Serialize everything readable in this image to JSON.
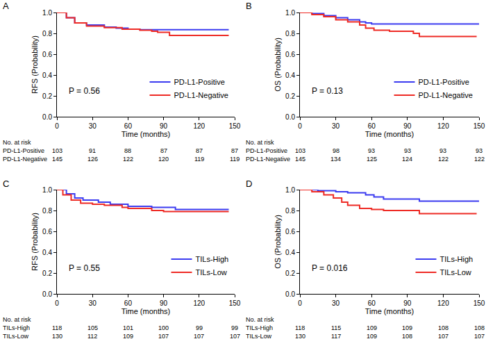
{
  "chart_data": [
    {
      "panel_label": "A",
      "type": "line",
      "line_style": "step",
      "x_label": "Time (months)",
      "y_label": "RFS (Probability)",
      "xlim": [
        0,
        150
      ],
      "xticks": [
        0,
        30,
        60,
        90,
        120,
        150
      ],
      "ylim": [
        0,
        1
      ],
      "yticks": [
        {
          "value": 0,
          "label": "0.0"
        },
        {
          "value": 0.2,
          "label": "0.2"
        },
        {
          "value": 0.4,
          "label": "0.4"
        },
        {
          "value": 0.6,
          "label": "0.6"
        },
        {
          "value": 0.8,
          "label": "0.8"
        },
        {
          "value": 1,
          "label": "1.0"
        }
      ],
      "legend": "lower right",
      "annotation": "P = 0.56",
      "series": [
        {
          "name": "PD-L1-Positive",
          "color": "#3b3bf0",
          "x": [
            0,
            8,
            15,
            25,
            40,
            50,
            60,
            70,
            145
          ],
          "values": [
            1.0,
            0.95,
            0.9,
            0.88,
            0.86,
            0.85,
            0.84,
            0.835,
            0.835
          ]
        },
        {
          "name": "PD-L1-Negative",
          "color": "#ee2a24",
          "x": [
            0,
            8,
            15,
            25,
            40,
            55,
            70,
            80,
            85,
            95,
            145
          ],
          "values": [
            1.0,
            0.95,
            0.9,
            0.87,
            0.855,
            0.84,
            0.83,
            0.82,
            0.81,
            0.78,
            0.78
          ]
        }
      ],
      "risk_table": {
        "title": "No. at risk",
        "times": [
          0,
          30,
          60,
          90,
          120,
          150
        ],
        "rows": [
          {
            "name": "PD-L1-Positive",
            "values": [
              103,
              91,
              88,
              87,
              87,
              87
            ]
          },
          {
            "name": "PD-L1-Negative",
            "values": [
              145,
              126,
              122,
              120,
              119,
              119
            ]
          }
        ]
      }
    },
    {
      "panel_label": "B",
      "type": "line",
      "line_style": "step",
      "x_label": "Time (months)",
      "y_label": "OS (Probability)",
      "xlim": [
        0,
        150
      ],
      "xticks": [
        0,
        30,
        60,
        90,
        120,
        150
      ],
      "ylim": [
        0,
        1
      ],
      "yticks": [
        {
          "value": 0,
          "label": "0.0"
        },
        {
          "value": 0.2,
          "label": "0.2"
        },
        {
          "value": 0.4,
          "label": "0.4"
        },
        {
          "value": 0.6,
          "label": "0.6"
        },
        {
          "value": 0.8,
          "label": "0.8"
        },
        {
          "value": 1,
          "label": "1.0"
        }
      ],
      "legend": "lower right",
      "annotation": "P = 0.13",
      "series": [
        {
          "name": "PD-L1-Positive",
          "color": "#3b3bf0",
          "x": [
            0,
            10,
            20,
            30,
            40,
            50,
            55,
            60,
            150
          ],
          "values": [
            1.0,
            0.99,
            0.97,
            0.95,
            0.93,
            0.91,
            0.9,
            0.89,
            0.89
          ]
        },
        {
          "name": "PD-L1-Negative",
          "color": "#ee2a24",
          "x": [
            0,
            10,
            20,
            30,
            40,
            50,
            55,
            62,
            75,
            95,
            100,
            148
          ],
          "values": [
            1.0,
            0.98,
            0.96,
            0.93,
            0.91,
            0.88,
            0.85,
            0.83,
            0.82,
            0.8,
            0.77,
            0.77
          ]
        }
      ],
      "risk_table": {
        "title": "No. at risk",
        "times": [
          0,
          30,
          60,
          90,
          120,
          150
        ],
        "rows": [
          {
            "name": "PD-L1-Positive",
            "values": [
              103,
              98,
              93,
              93,
              93,
              93
            ]
          },
          {
            "name": "PD-L1-Negative",
            "values": [
              145,
              134,
              125,
              124,
              122,
              122
            ]
          }
        ]
      }
    },
    {
      "panel_label": "C",
      "type": "line",
      "line_style": "step",
      "x_label": "Time (months)",
      "y_label": "RFS (Probability)",
      "xlim": [
        0,
        150
      ],
      "xticks": [
        0,
        30,
        60,
        90,
        120,
        150
      ],
      "ylim": [
        0,
        1
      ],
      "yticks": [
        {
          "value": 0,
          "label": "0.0"
        },
        {
          "value": 0.2,
          "label": "0.2"
        },
        {
          "value": 0.4,
          "label": "0.4"
        },
        {
          "value": 0.6,
          "label": "0.6"
        },
        {
          "value": 0.8,
          "label": "0.8"
        },
        {
          "value": 1,
          "label": "1.0"
        }
      ],
      "legend": "lower right",
      "annotation": "P = 0.55",
      "series": [
        {
          "name": "TILs-High",
          "color": "#3b3bf0",
          "x": [
            0,
            8,
            15,
            22,
            35,
            45,
            60,
            80,
            100,
            145
          ],
          "values": [
            1.0,
            0.96,
            0.92,
            0.9,
            0.88,
            0.86,
            0.84,
            0.83,
            0.81,
            0.81
          ]
        },
        {
          "name": "TILs-Low",
          "color": "#ee2a24",
          "x": [
            0,
            5,
            12,
            20,
            30,
            40,
            55,
            60,
            80,
            90,
            145
          ],
          "values": [
            1.0,
            0.95,
            0.9,
            0.87,
            0.86,
            0.85,
            0.83,
            0.82,
            0.8,
            0.79,
            0.79
          ]
        }
      ],
      "risk_table": {
        "title": "No. at risk",
        "times": [
          0,
          30,
          60,
          90,
          120,
          150
        ],
        "rows": [
          {
            "name": "TILs-High",
            "values": [
              118,
              105,
              101,
              100,
              99,
              99
            ]
          },
          {
            "name": "TILs-Low",
            "values": [
              130,
              112,
              109,
              107,
              107,
              107
            ]
          }
        ]
      }
    },
    {
      "panel_label": "D",
      "type": "line",
      "line_style": "step",
      "x_label": "Time (months)",
      "y_label": "OS (Probability)",
      "xlim": [
        0,
        150
      ],
      "xticks": [
        0,
        30,
        60,
        90,
        120,
        150
      ],
      "ylim": [
        0,
        1
      ],
      "yticks": [
        {
          "value": 0,
          "label": "0.0"
        },
        {
          "value": 0.2,
          "label": "0.2"
        },
        {
          "value": 0.4,
          "label": "0.4"
        },
        {
          "value": 0.6,
          "label": "0.6"
        },
        {
          "value": 0.8,
          "label": "0.8"
        },
        {
          "value": 1,
          "label": "1.0"
        }
      ],
      "legend": "lower right",
      "annotation": "P = 0.016",
      "series": [
        {
          "name": "TILs-High",
          "color": "#3b3bf0",
          "x": [
            0,
            15,
            30,
            40,
            55,
            62,
            70,
            100,
            150
          ],
          "values": [
            1.0,
            0.99,
            0.98,
            0.97,
            0.95,
            0.93,
            0.91,
            0.89,
            0.89
          ]
        },
        {
          "name": "TILs-Low",
          "color": "#ee2a24",
          "x": [
            0,
            10,
            20,
            28,
            35,
            40,
            50,
            60,
            70,
            100,
            148
          ],
          "values": [
            1.0,
            0.98,
            0.95,
            0.92,
            0.88,
            0.85,
            0.82,
            0.81,
            0.8,
            0.77,
            0.77
          ]
        }
      ],
      "risk_table": {
        "title": "No. at risk",
        "times": [
          0,
          30,
          60,
          90,
          120,
          150
        ],
        "rows": [
          {
            "name": "TILs-High",
            "values": [
              118,
              115,
              109,
              109,
              108,
              108
            ]
          },
          {
            "name": "TILs-Low",
            "values": [
              130,
              117,
              109,
              108,
              107,
              107
            ]
          }
        ]
      }
    }
  ]
}
